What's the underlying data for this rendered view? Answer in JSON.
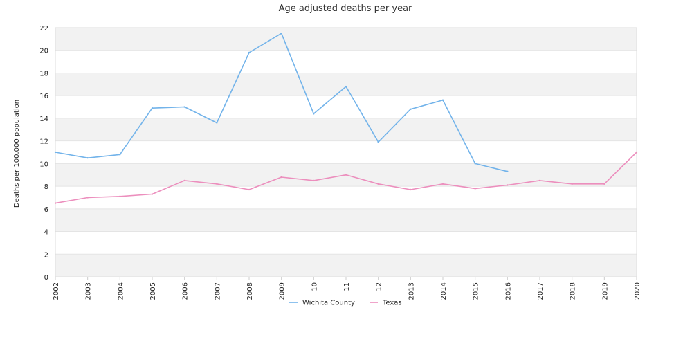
{
  "chart_data": {
    "type": "line",
    "title": "Age adjusted deaths per year",
    "xlabel": "",
    "ylabel": "Deaths per 100,000 population",
    "ylim": [
      0,
      22
    ],
    "yticks": [
      0,
      2,
      4,
      6,
      8,
      10,
      12,
      14,
      16,
      18,
      20,
      22
    ],
    "categories": [
      "2002",
      "2003",
      "2004",
      "2005",
      "2006",
      "2007",
      "2008",
      "2009",
      "10",
      "11",
      "12",
      "2013",
      "2014",
      "2015",
      "2016",
      "2017",
      "2018",
      "2019",
      "2020"
    ],
    "x_numeric": [
      2002,
      2003,
      2004,
      2005,
      2006,
      2007,
      2008,
      2009,
      2010,
      2011,
      2012,
      2013,
      2014,
      2015,
      2016,
      2017,
      2018,
      2019,
      2020
    ],
    "grid": true,
    "legend_position": "bottom-center",
    "series": [
      {
        "name": "Wichita County",
        "color": "#72b3ea",
        "x": [
          2002,
          2003,
          2004,
          2005,
          2006,
          2007,
          2008,
          2009,
          2010,
          2011,
          2012,
          2013,
          2014,
          2015,
          2016
        ],
        "values": [
          11.0,
          10.5,
          10.8,
          14.9,
          15.0,
          13.6,
          19.8,
          21.5,
          14.4,
          16.8,
          11.9,
          14.8,
          15.6,
          10.0,
          9.3
        ]
      },
      {
        "name": "Texas",
        "color": "#ec8ebd",
        "x": [
          2002,
          2003,
          2004,
          2005,
          2006,
          2007,
          2008,
          2009,
          2010,
          2011,
          2012,
          2013,
          2014,
          2015,
          2016,
          2017,
          2018,
          2019,
          2020
        ],
        "values": [
          6.5,
          7.0,
          7.1,
          7.3,
          8.5,
          8.2,
          7.7,
          8.8,
          8.5,
          9.0,
          8.2,
          7.7,
          8.2,
          7.8,
          8.1,
          8.5,
          8.2,
          8.2,
          11.0
        ]
      }
    ]
  }
}
